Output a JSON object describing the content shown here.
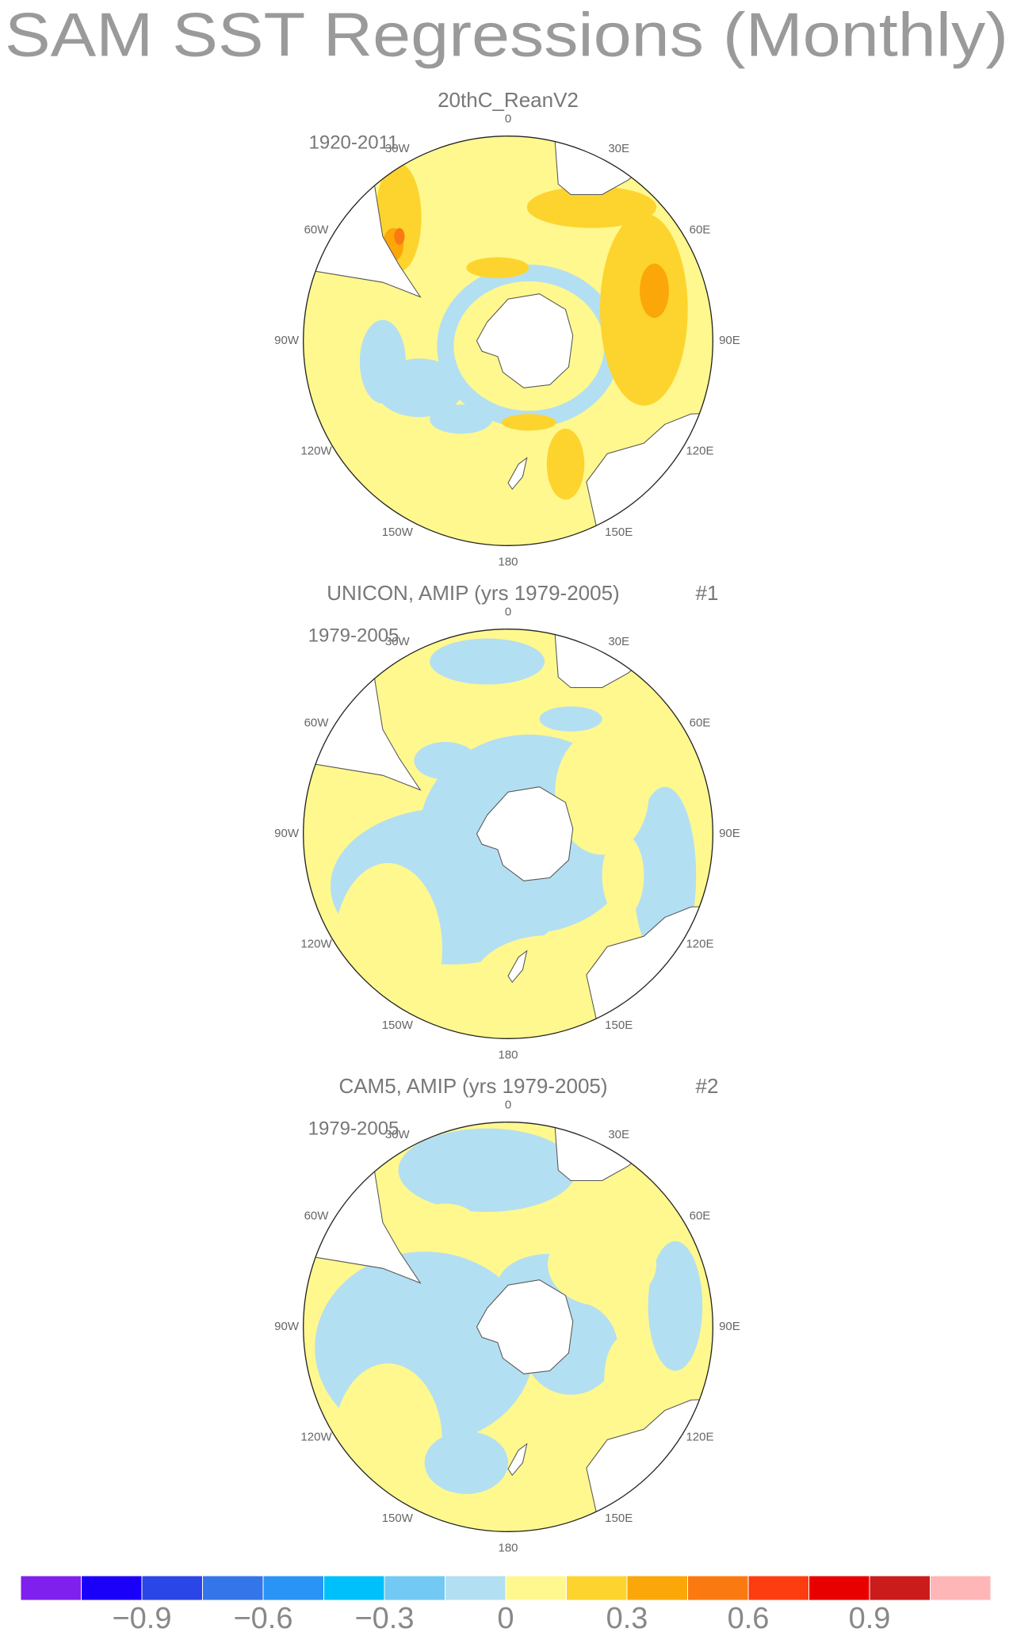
{
  "title": "SAM SST Regressions (Monthly)",
  "longitude_labels": [
    "0",
    "30E",
    "60E",
    "90E",
    "120E",
    "150E",
    "180",
    "150W",
    "120W",
    "90W",
    "60W",
    "30W"
  ],
  "panels": [
    {
      "subtitle": "20thC_ReanV2",
      "period": "1920-2011"
    },
    {
      "subtitle": "UNICON, AMIP (yrs 1979-2005)",
      "period": "1979-2005",
      "number": "#1"
    },
    {
      "subtitle": "CAM5, AMIP (yrs 1979-2005)",
      "period": "1979-2005",
      "number": "#2"
    }
  ],
  "colorbar": {
    "colors": [
      "#7f20ee",
      "#1a00f8",
      "#2b46e6",
      "#3575ea",
      "#2a93f6",
      "#00c0fb",
      "#72c9f4",
      "#b3dff2",
      "#fff88f",
      "#fdd42e",
      "#fba70a",
      "#fa7a11",
      "#fd3d10",
      "#e80000",
      "#cc1b1b",
      "#ffb6b6"
    ],
    "lim": [
      -1.2,
      1.2
    ],
    "ticks": [
      {
        "value": -0.9,
        "label": "−0.9"
      },
      {
        "value": -0.6,
        "label": "−0.6"
      },
      {
        "value": -0.3,
        "label": "−0.3"
      },
      0,
      0.3,
      0.6,
      0.9
    ]
  }
}
